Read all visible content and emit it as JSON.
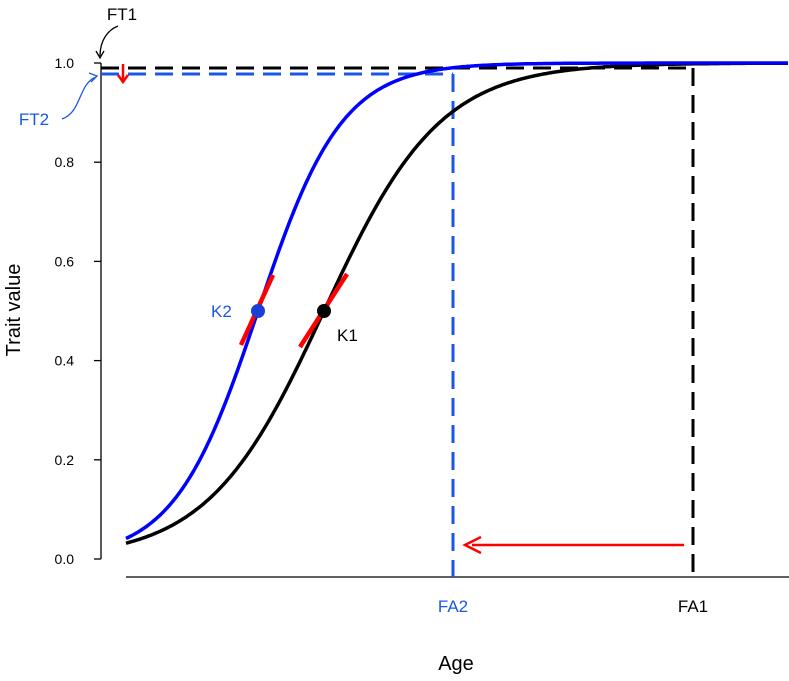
{
  "chart_data": {
    "type": "line",
    "title": "",
    "xlabel": "Age",
    "ylabel": "Trait value",
    "ylim": [
      0,
      1
    ],
    "yticks": [
      "0.0",
      "0.2",
      "0.4",
      "0.6",
      "0.8",
      "1.0"
    ],
    "xticks_hidden": true,
    "grid": false,
    "colors": {
      "curve1": "#000000",
      "curve2": "#0000ff",
      "slope": "#ff0000",
      "fa2_line": "#1a57e6",
      "shift_arrow": "#ff0000"
    },
    "series": [
      {
        "key": "curve1",
        "k": 0.5,
        "start": 0.083,
        "marker_y": 0.5
      },
      {
        "key": "curve2",
        "k": 0.5,
        "start": 0.083,
        "marker_y": 0.5
      }
    ],
    "reference_lines": {
      "FT1": 0.99,
      "FT2": 0.97,
      "FA2_curve1_value": 0.82
    },
    "labels": {
      "ft1": "FT1",
      "ft2": "FT2",
      "fa1": "FA1",
      "fa2": "FA2",
      "k1": "K1",
      "k2": "K2"
    }
  }
}
